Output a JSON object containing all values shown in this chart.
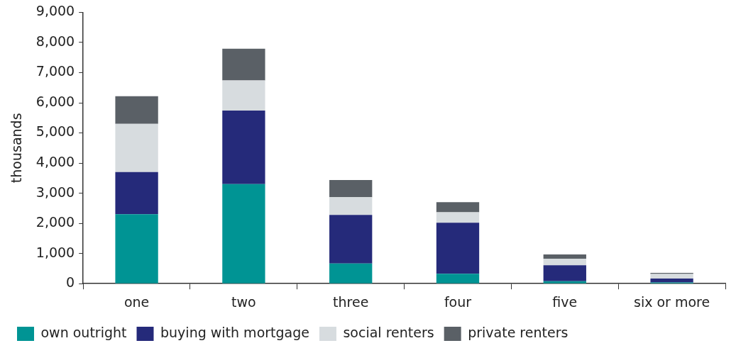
{
  "chart_data": {
    "type": "bar",
    "stacked": true,
    "ylabel": "thousands",
    "categories": [
      "one",
      "two",
      "three",
      "four",
      "five",
      "six or more"
    ],
    "series": [
      {
        "name": "own outright",
        "color": "#009494",
        "values": [
          2300,
          3300,
          670,
          330,
          80,
          40
        ]
      },
      {
        "name": "buying with mortgage",
        "color": "#252a7a",
        "values": [
          1400,
          2440,
          1610,
          1690,
          530,
          130
        ]
      },
      {
        "name": "social renters",
        "color": "#d7dcdf",
        "values": [
          1600,
          1000,
          590,
          350,
          220,
          150
        ]
      },
      {
        "name": "private renters",
        "color": "#5a6066",
        "values": [
          920,
          1050,
          570,
          330,
          140,
          40
        ]
      }
    ],
    "ylim": [
      0,
      9000
    ],
    "yticks": [
      {
        "value": 0,
        "label": "0"
      },
      {
        "value": 1000,
        "label": "1,000"
      },
      {
        "value": 2000,
        "label": "2,000"
      },
      {
        "value": 3000,
        "label": "3,000"
      },
      {
        "value": 4000,
        "label": "4,000"
      },
      {
        "value": 5000,
        "label": "5,000"
      },
      {
        "value": 6000,
        "label": "6,000"
      },
      {
        "value": 7000,
        "label": "7,000"
      },
      {
        "value": 8000,
        "label": "8,000"
      },
      {
        "value": 9000,
        "label": "9,000"
      }
    ],
    "grid": false,
    "legend": "bottom"
  }
}
